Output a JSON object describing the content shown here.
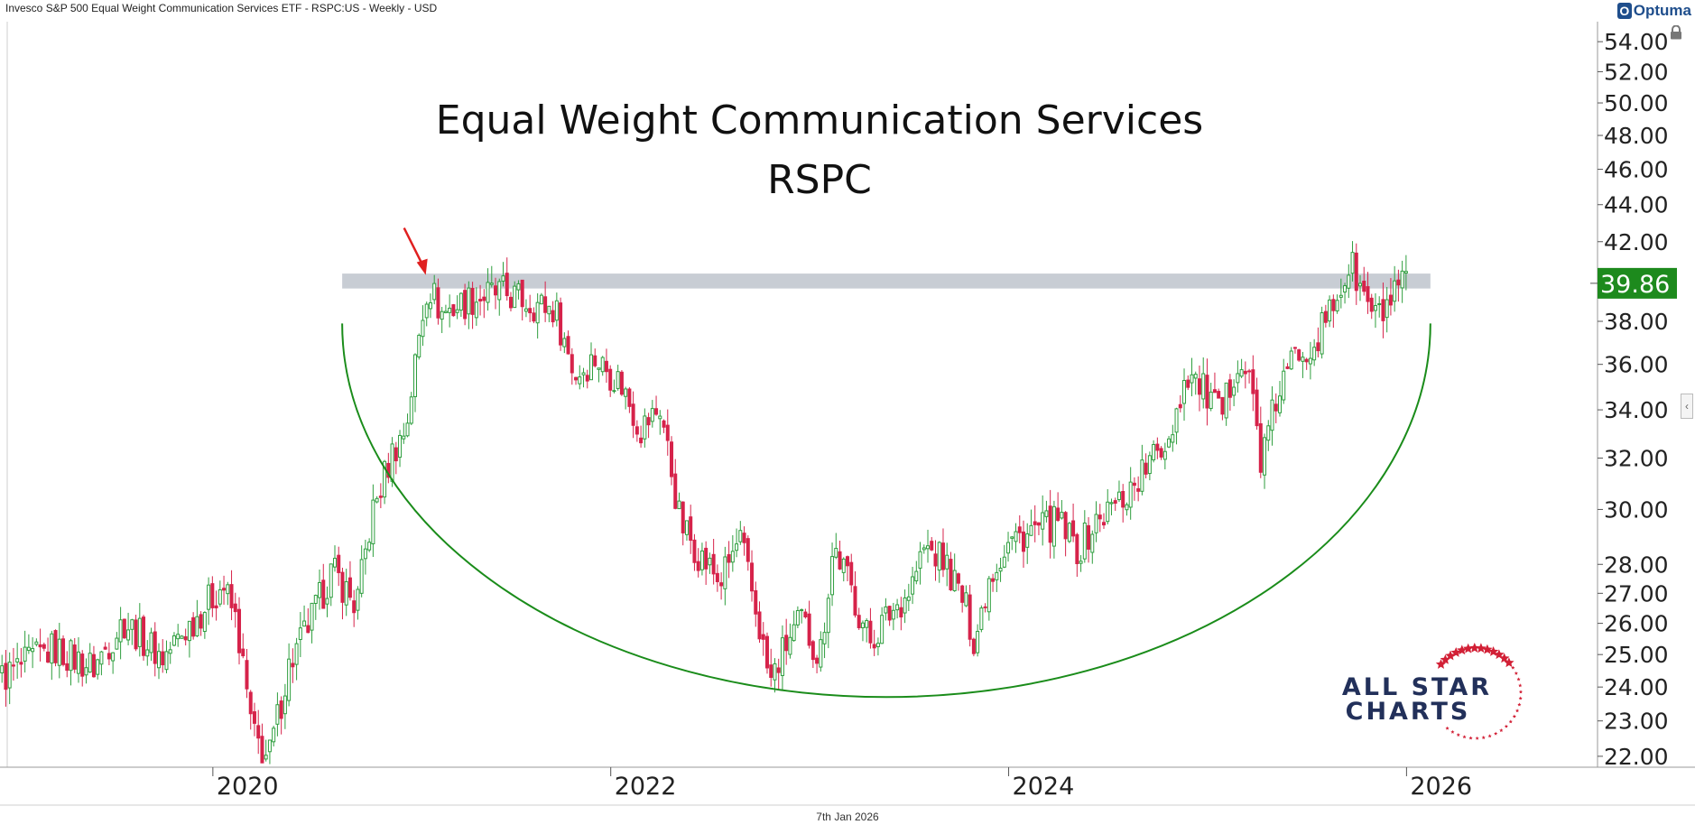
{
  "header": {
    "security_line": "Invesco S&P 500 Equal Weight Communication Services ETF - RSPC:US - Weekly - USD",
    "brand": "Optuma",
    "brand_mark": "O",
    "footer_date": "7th Jan 2026"
  },
  "watermark": {
    "line1": "ALL STAR",
    "line2": "CHARTS",
    "color": "#22305a",
    "star_color": "#d21f35"
  },
  "colors": {
    "up": "#2e9e3e",
    "down": "#d6234a",
    "arc": "#1a8c1a",
    "band": "#c8cdd4",
    "last_badge": "#1d8a1d",
    "arrow": "#e02020"
  },
  "chart_data": {
    "type": "candlestick",
    "title": "Equal Weight Communication Services",
    "subtitle": "RSPC",
    "y_scale": "log",
    "ylim": [
      21.7,
      55.0
    ],
    "y_ticks": [
      "54.00",
      "52.00",
      "50.00",
      "48.00",
      "46.00",
      "44.00",
      "42.00",
      "38.00",
      "36.00",
      "34.00",
      "32.00",
      "30.00",
      "28.00",
      "27.00",
      "26.00",
      "25.00",
      "24.00",
      "23.00",
      "22.00"
    ],
    "y_tick_values": [
      54,
      52,
      50,
      48,
      46,
      44,
      42,
      38,
      36,
      34,
      32,
      30,
      28,
      27,
      26,
      25,
      24,
      23,
      22
    ],
    "x_ticks": [
      "2020",
      "2022",
      "2024",
      "2026"
    ],
    "x_tick_values": [
      2020.0,
      2022.0,
      2024.0,
      2026.0
    ],
    "xlim": [
      2018.93,
      2027.45
    ],
    "last_value": "39.86",
    "resistance_band": {
      "x_start": 2020.65,
      "x_end": 2026.12,
      "y_low": 39.6,
      "y_high": 40.35
    },
    "rounded_bottom_arc": {
      "x_start": 2020.65,
      "x_end": 2026.12,
      "y_ends": 37.9,
      "y_bottom": 23.7
    },
    "annotation_arrow_at": {
      "x": 2021.07,
      "y": 40.1
    },
    "weekly_path": [
      {
        "date": 2018.94,
        "close": 24.3
      },
      {
        "date": 2019.2,
        "close": 25.2
      },
      {
        "date": 2019.4,
        "close": 24.6
      },
      {
        "date": 2019.55,
        "close": 26.1
      },
      {
        "date": 2019.75,
        "close": 24.9
      },
      {
        "date": 2019.95,
        "close": 26.5
      },
      {
        "date": 2020.05,
        "close": 27.3
      },
      {
        "date": 2020.12,
        "close": 26.0
      },
      {
        "date": 2020.2,
        "close": 22.6
      },
      {
        "date": 2020.28,
        "close": 21.9
      },
      {
        "date": 2020.38,
        "close": 24.6
      },
      {
        "date": 2020.5,
        "close": 26.2
      },
      {
        "date": 2020.6,
        "close": 27.8
      },
      {
        "date": 2020.68,
        "close": 27.0
      },
      {
        "date": 2020.72,
        "close": 26.5
      },
      {
        "date": 2020.8,
        "close": 29.8
      },
      {
        "date": 2020.9,
        "close": 32.2
      },
      {
        "date": 2020.97,
        "close": 33.2
      },
      {
        "date": 2021.04,
        "close": 37.5
      },
      {
        "date": 2021.08,
        "close": 39.9
      },
      {
        "date": 2021.15,
        "close": 38.4
      },
      {
        "date": 2021.3,
        "close": 39.1
      },
      {
        "date": 2021.45,
        "close": 39.4
      },
      {
        "date": 2021.6,
        "close": 38.9
      },
      {
        "date": 2021.72,
        "close": 38.6
      },
      {
        "date": 2021.82,
        "close": 35.5
      },
      {
        "date": 2021.92,
        "close": 36.3
      },
      {
        "date": 2022.05,
        "close": 35.2
      },
      {
        "date": 2022.15,
        "close": 33.2
      },
      {
        "date": 2022.25,
        "close": 34.1
      },
      {
        "date": 2022.35,
        "close": 29.5
      },
      {
        "date": 2022.45,
        "close": 28.3
      },
      {
        "date": 2022.55,
        "close": 27.4
      },
      {
        "date": 2022.65,
        "close": 28.9
      },
      {
        "date": 2022.75,
        "close": 25.8
      },
      {
        "date": 2022.8,
        "close": 24.1
      },
      {
        "date": 2022.88,
        "close": 25.3
      },
      {
        "date": 2022.96,
        "close": 26.1
      },
      {
        "date": 2023.05,
        "close": 24.9
      },
      {
        "date": 2023.12,
        "close": 28.7
      },
      {
        "date": 2023.2,
        "close": 27.3
      },
      {
        "date": 2023.3,
        "close": 25.4
      },
      {
        "date": 2023.4,
        "close": 26.3
      },
      {
        "date": 2023.5,
        "close": 27.1
      },
      {
        "date": 2023.58,
        "close": 28.6
      },
      {
        "date": 2023.68,
        "close": 28.1
      },
      {
        "date": 2023.78,
        "close": 26.6
      },
      {
        "date": 2023.83,
        "close": 25.4
      },
      {
        "date": 2023.9,
        "close": 27.6
      },
      {
        "date": 2024.0,
        "close": 28.8
      },
      {
        "date": 2024.12,
        "close": 29.2
      },
      {
        "date": 2024.25,
        "close": 29.5
      },
      {
        "date": 2024.35,
        "close": 28.5
      },
      {
        "date": 2024.45,
        "close": 29.6
      },
      {
        "date": 2024.58,
        "close": 30.5
      },
      {
        "date": 2024.7,
        "close": 31.7
      },
      {
        "date": 2024.8,
        "close": 32.8
      },
      {
        "date": 2024.9,
        "close": 35.7
      },
      {
        "date": 2025.0,
        "close": 34.6
      },
      {
        "date": 2025.07,
        "close": 33.6
      },
      {
        "date": 2025.15,
        "close": 36.4
      },
      {
        "date": 2025.22,
        "close": 35.1
      },
      {
        "date": 2025.27,
        "close": 31.8
      },
      {
        "date": 2025.35,
        "close": 34.6
      },
      {
        "date": 2025.45,
        "close": 36.6
      },
      {
        "date": 2025.55,
        "close": 37.2
      },
      {
        "date": 2025.62,
        "close": 38.5
      },
      {
        "date": 2025.68,
        "close": 39.9
      },
      {
        "date": 2025.72,
        "close": 40.8
      },
      {
        "date": 2025.78,
        "close": 39.3
      },
      {
        "date": 2025.85,
        "close": 38.1
      },
      {
        "date": 2025.92,
        "close": 38.9
      },
      {
        "date": 2026.0,
        "close": 39.86
      }
    ]
  }
}
